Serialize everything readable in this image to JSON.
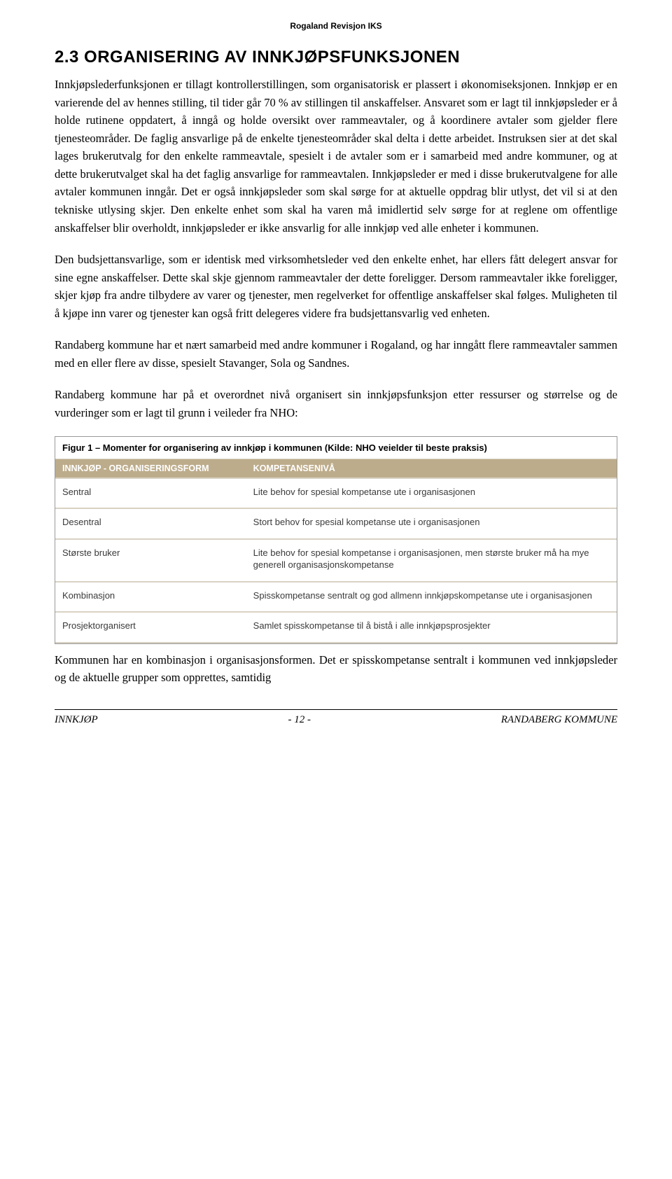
{
  "header": {
    "org": "Rogaland Revisjon IKS"
  },
  "section": {
    "number": "2.3",
    "title": "ORGANISERING AV INNKJØPSFUNKSJONEN"
  },
  "paragraphs": {
    "p1": "Innkjøpslederfunksjonen er tillagt kontrollerstillingen, som organisatorisk er plassert i økonomiseksjonen. Innkjøp er en varierende del av hennes stilling, til tider går 70 % av stillingen til anskaffelser. Ansvaret som er lagt til innkjøpsleder er å holde rutinene oppdatert, å inngå og holde oversikt over rammeavtaler, og å koordinere avtaler som gjelder flere tjenesteområder. De faglig ansvarlige på de enkelte tjenesteområder skal delta i dette arbeidet. Instruksen sier at det skal lages brukerutvalg for den enkelte rammeavtale, spesielt i de avtaler som er i samarbeid med andre kommuner, og at dette brukerutvalget skal ha det faglig ansvarlige for rammeavtalen. Innkjøpsleder er med i disse brukerutvalgene for alle avtaler kommunen inngår. Det er også innkjøpsleder som skal sørge for at aktuelle oppdrag blir utlyst, det vil si at den tekniske utlysing skjer. Den enkelte enhet som skal ha varen må imidlertid selv sørge for at reglene om offentlige anskaffelser blir overholdt, innkjøpsleder er ikke ansvarlig for alle innkjøp ved alle enheter i kommunen.",
    "p2": "Den budsjettansvarlige, som er identisk med virksomhetsleder ved den enkelte enhet, har ellers fått delegert ansvar for sine egne anskaffelser. Dette skal skje gjennom rammeavtaler der dette foreligger. Dersom rammeavtaler ikke foreligger, skjer kjøp fra andre tilbydere av varer og tjenester, men regelverket for offentlige anskaffelser skal følges. Muligheten til å kjøpe inn varer og tjenester kan også fritt delegeres videre fra budsjettansvarlig ved enheten.",
    "p3": "Randaberg kommune har et nært samarbeid med andre kommuner i Rogaland, og har inngått flere rammeavtaler sammen med en eller flere av disse, spesielt Stavanger, Sola og Sandnes.",
    "p4": "Randaberg kommune har på et overordnet nivå organisert sin innkjøpsfunksjon etter ressurser og størrelse og de vurderinger som er lagt til grunn i veileder fra NHO:"
  },
  "figure": {
    "caption": "Figur 1 – Momenter for organisering av innkjøp i kommunen (Kilde: NHO veielder til beste praksis)",
    "table": {
      "headers": [
        "INNKJØP - ORGANISERINGSFORM",
        "KOMPETANSENIVÅ"
      ],
      "rows": [
        [
          "Sentral",
          "Lite behov for spesial kompetanse ute i organisasjonen"
        ],
        [
          "Desentral",
          "Stort behov for spesial kompetanse ute i organisasjonen"
        ],
        [
          "Største bruker",
          "Lite behov for spesial kompetanse i organisasjonen, men største bruker må ha mye generell organisasjonskompetanse"
        ],
        [
          "Kombinasjon",
          "Spisskompetanse sentralt og god allmenn innkjøpskompetanse ute i organisasjonen"
        ],
        [
          "Prosjektorganisert",
          "Samlet spisskompetanse til å bistå i alle innkjøpsprosjekter"
        ]
      ],
      "header_bg": "#bdac8b",
      "header_fg": "#ffffff",
      "row_border": "#d9d2c4"
    }
  },
  "closing": "Kommunen har en kombinasjon i organisasjonsformen. Det er spisskompetanse sentralt i kommunen ved innkjøpsleder og de aktuelle grupper som opprettes, samtidig",
  "footer": {
    "left": "INNKJØP",
    "center": "- 12 -",
    "right": "RANDABERG KOMMUNE"
  }
}
